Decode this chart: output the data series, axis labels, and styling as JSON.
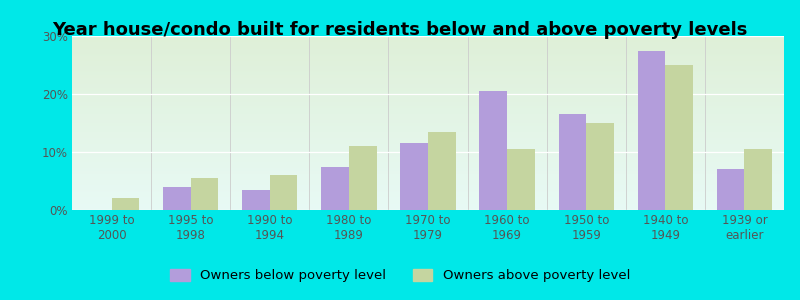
{
  "title": "Year house/condo built for residents below and above poverty levels",
  "categories": [
    "1999 to\n2000",
    "1995 to\n1998",
    "1990 to\n1994",
    "1980 to\n1989",
    "1970 to\n1979",
    "1960 to\n1969",
    "1950 to\n1959",
    "1940 to\n1949",
    "1939 or\nearlier"
  ],
  "below_poverty": [
    0.0,
    4.0,
    3.5,
    7.5,
    11.5,
    20.5,
    16.5,
    27.5,
    7.0
  ],
  "above_poverty": [
    2.0,
    5.5,
    6.0,
    11.0,
    13.5,
    10.5,
    15.0,
    25.0,
    10.5
  ],
  "below_color": "#b39ddb",
  "above_color": "#c5d5a0",
  "background_outer": "#00e8e8",
  "background_inner_top": "#dff0d8",
  "background_inner_bottom": "#e8faf5",
  "ylim": [
    0,
    30
  ],
  "yticks": [
    0,
    10,
    20,
    30
  ],
  "ytick_labels": [
    "0%",
    "10%",
    "20%",
    "30%"
  ],
  "legend_below": "Owners below poverty level",
  "legend_above": "Owners above poverty level",
  "title_fontsize": 13,
  "tick_fontsize": 8.5,
  "legend_fontsize": 9.5
}
